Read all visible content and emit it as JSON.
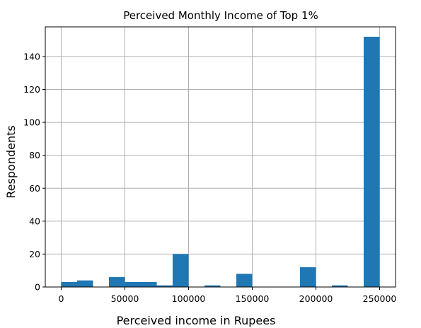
{
  "chart_data": {
    "type": "bar",
    "title": "Perceived Monthly Income of Top 1%",
    "xlabel": "Perceived income in Rupees",
    "ylabel": "Respondents",
    "xlim": [
      -12500,
      262500
    ],
    "ylim": [
      0,
      158
    ],
    "xticks": [
      0,
      50000,
      100000,
      150000,
      200000,
      250000
    ],
    "yticks": [
      0,
      20,
      40,
      60,
      80,
      100,
      120,
      140
    ],
    "grid": true,
    "bin_width": 12500,
    "bins": [
      {
        "start": 0,
        "value": 3
      },
      {
        "start": 12500,
        "value": 4
      },
      {
        "start": 25000,
        "value": 0
      },
      {
        "start": 37500,
        "value": 6
      },
      {
        "start": 50000,
        "value": 3
      },
      {
        "start": 62500,
        "value": 3
      },
      {
        "start": 75000,
        "value": 1
      },
      {
        "start": 87500,
        "value": 20
      },
      {
        "start": 100000,
        "value": 0
      },
      {
        "start": 112500,
        "value": 1
      },
      {
        "start": 125000,
        "value": 0
      },
      {
        "start": 137500,
        "value": 8
      },
      {
        "start": 150000,
        "value": 0
      },
      {
        "start": 162500,
        "value": 0
      },
      {
        "start": 175000,
        "value": 0
      },
      {
        "start": 187500,
        "value": 12
      },
      {
        "start": 200000,
        "value": 0
      },
      {
        "start": 212500,
        "value": 1
      },
      {
        "start": 225000,
        "value": 0
      },
      {
        "start": 237500,
        "value": 152
      }
    ],
    "colors": {
      "bar": "#1f77b4",
      "grid": "#b0b0b0",
      "axis": "#000000"
    }
  }
}
